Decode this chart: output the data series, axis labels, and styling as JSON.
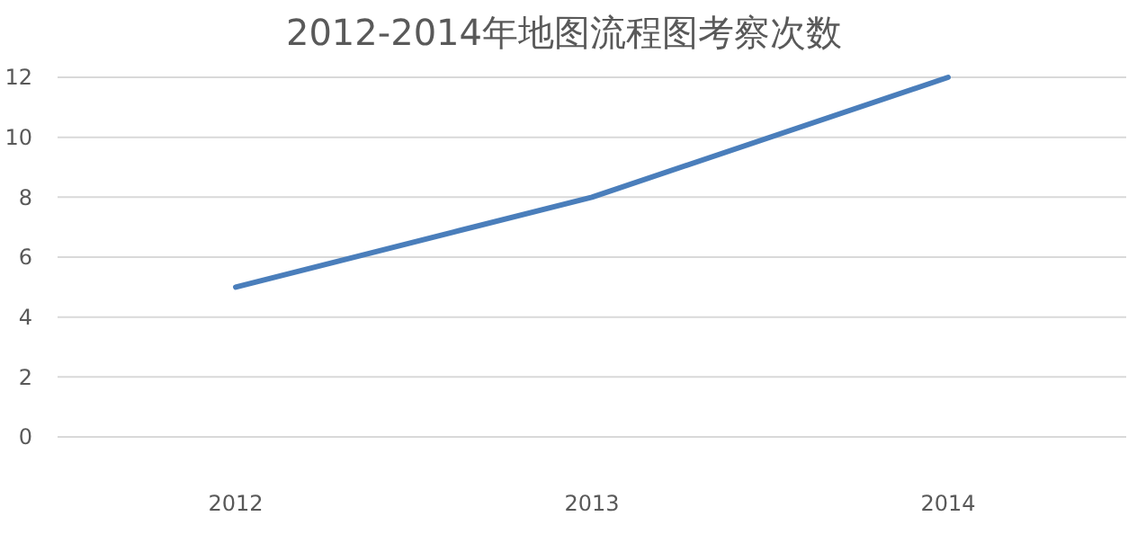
{
  "chart_data": {
    "type": "line",
    "title": "2012-2014年地图流程图考察次数",
    "categories": [
      "2012",
      "2013",
      "2014"
    ],
    "series": [
      {
        "color": "#4a7ebb",
        "values": [
          5,
          8,
          12
        ]
      }
    ],
    "ylim": [
      0,
      12
    ],
    "yticks": [
      0,
      2,
      4,
      6,
      8,
      10,
      12
    ],
    "grid": "y",
    "marker": "none",
    "line_style": "solid"
  }
}
